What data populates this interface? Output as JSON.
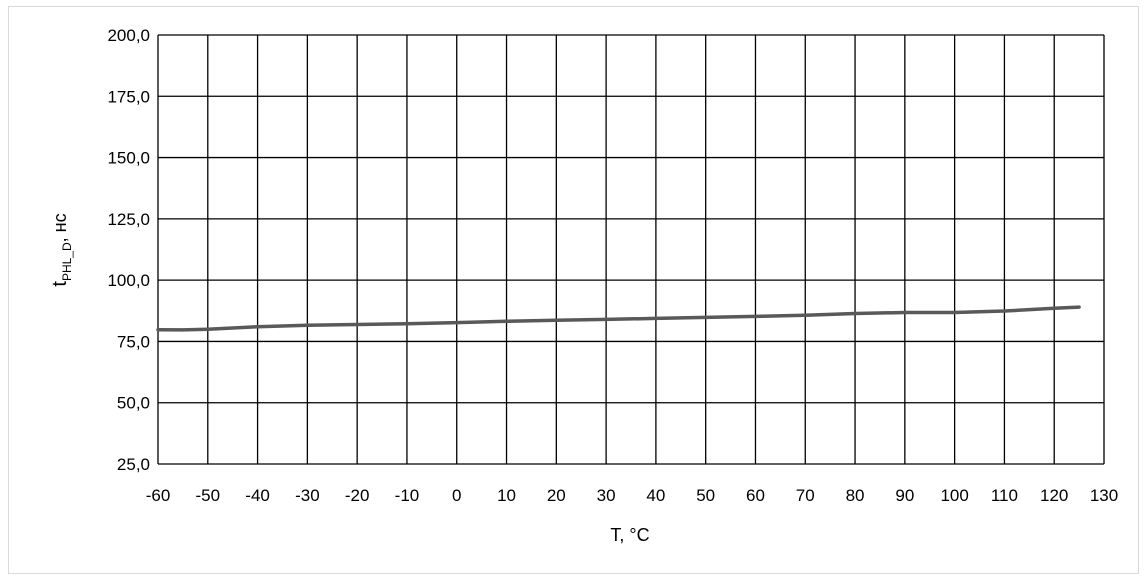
{
  "chart_data": {
    "type": "line",
    "xlabel": "T, °C",
    "ylabel_main": "t",
    "ylabel_sub": "PHL_D",
    "ylabel_unit": ", нс",
    "xlim": [
      -60,
      130
    ],
    "ylim": [
      25,
      200
    ],
    "xticks": [
      -60,
      -50,
      -40,
      -30,
      -20,
      -10,
      0,
      10,
      20,
      30,
      40,
      50,
      60,
      70,
      80,
      90,
      100,
      110,
      120,
      130
    ],
    "yticks": [
      25,
      50,
      75,
      100,
      125,
      150,
      175,
      200
    ],
    "ytick_labels": [
      "25,0",
      "50,0",
      "75,0",
      "100,0",
      "125,0",
      "150,0",
      "175,0",
      "200,0"
    ],
    "grid": true,
    "series": [
      {
        "color": "#595959",
        "x": [
          -60,
          -55,
          -50,
          -40,
          -30,
          -20,
          -10,
          0,
          10,
          20,
          30,
          40,
          50,
          60,
          70,
          80,
          90,
          100,
          110,
          120,
          125
        ],
        "y": [
          79.8,
          79.7,
          80.0,
          81.0,
          81.6,
          81.9,
          82.2,
          82.7,
          83.2,
          83.6,
          84.0,
          84.4,
          84.8,
          85.2,
          85.7,
          86.4,
          86.8,
          86.8,
          87.4,
          88.5,
          89.0
        ]
      }
    ]
  }
}
